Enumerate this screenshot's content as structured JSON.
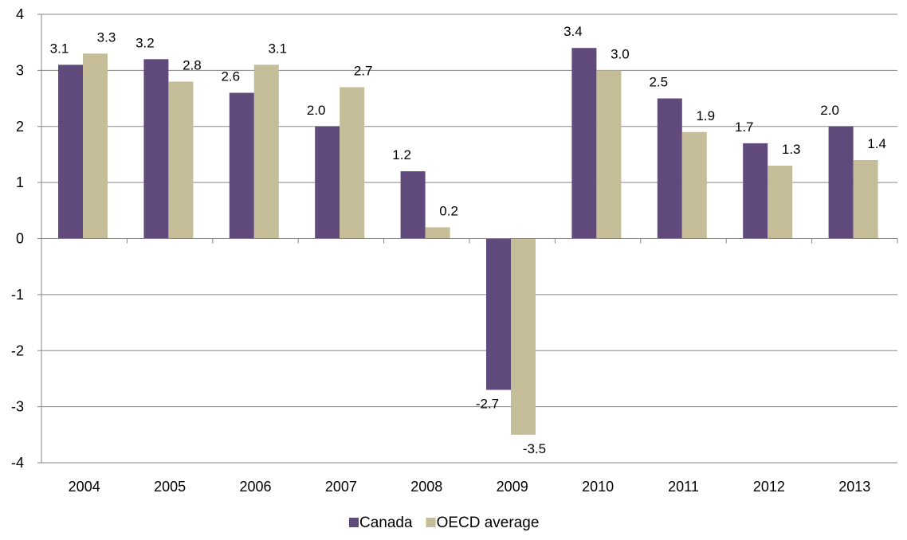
{
  "chart_data": {
    "type": "bar",
    "categories": [
      "2004",
      "2005",
      "2006",
      "2007",
      "2008",
      "2009",
      "2010",
      "2011",
      "2012",
      "2013"
    ],
    "series": [
      {
        "name": "Canada",
        "color": "#604a7b",
        "values": [
          3.1,
          3.2,
          2.6,
          2.0,
          1.2,
          -2.7,
          3.4,
          2.5,
          1.7,
          2.0
        ],
        "labels": [
          "3.1",
          "3.2",
          "2.6",
          "2.0",
          "1.2",
          "-2.7",
          "3.4",
          "2.5",
          "1.7",
          "2.0"
        ]
      },
      {
        "name": "OECD average",
        "color": "#c4bd97",
        "values": [
          3.3,
          2.8,
          3.1,
          2.7,
          0.2,
          -3.5,
          3.0,
          1.9,
          1.3,
          1.4
        ],
        "labels": [
          "3.3",
          "2.8",
          "3.1",
          "2.7",
          "0.2",
          "-3.5",
          "3.0",
          "1.9",
          "1.3",
          "1.4"
        ]
      }
    ],
    "ylim": [
      -4,
      4
    ],
    "yticks": [
      -4,
      -3,
      -2,
      -1,
      0,
      1,
      2,
      3,
      4
    ],
    "grid": true,
    "gridline_color": "#868686",
    "legend_position": "bottom"
  }
}
